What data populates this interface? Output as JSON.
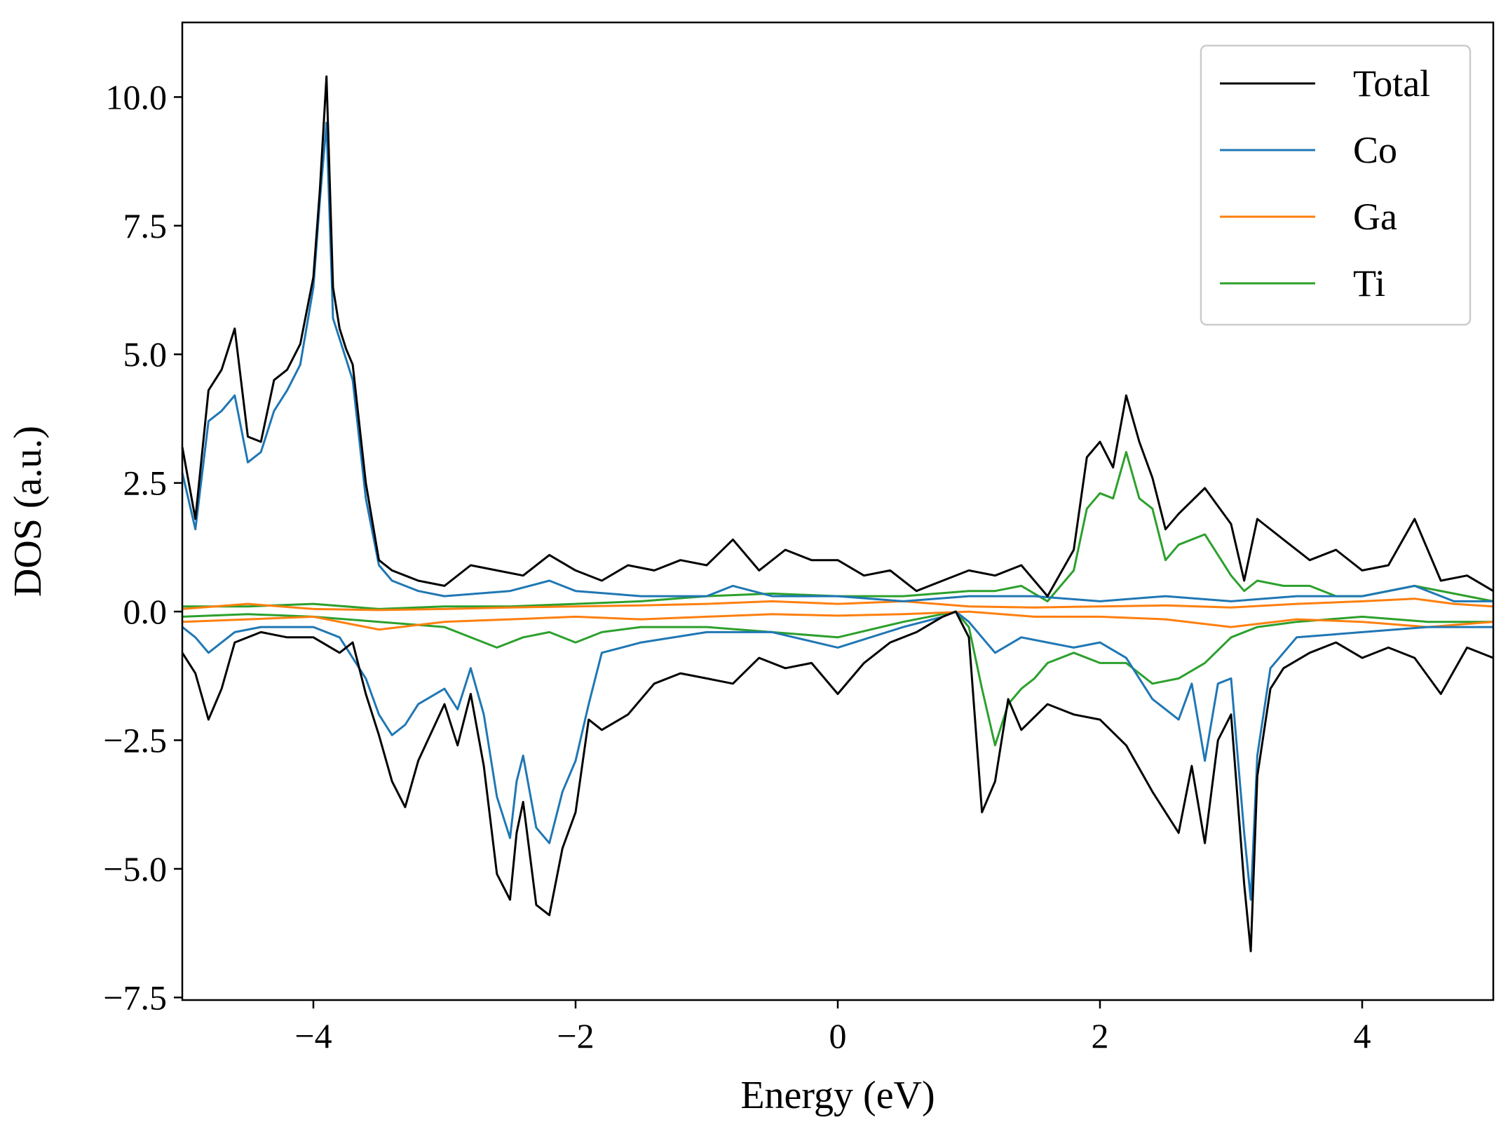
{
  "chart_data": {
    "type": "line",
    "title": "",
    "xlabel": "Energy (eV)",
    "ylabel": "DOS (a.u.)",
    "xlim": [
      -5,
      5
    ],
    "ylim": [
      -7.55,
      11.45
    ],
    "xticks": [
      -4,
      -2,
      0,
      2,
      4
    ],
    "xtick_labels": [
      "−4",
      "−2",
      "0",
      "2",
      "4"
    ],
    "yticks": [
      10.0,
      7.5,
      5.0,
      2.5,
      0.0,
      -2.5,
      -5.0,
      -7.5
    ],
    "ytick_labels": [
      "10.0",
      "7.5",
      "5.0",
      "2.5",
      "0.0",
      "−2.5",
      "−5.0",
      "−7.5"
    ],
    "grid": false,
    "legend_position": "top-right",
    "series": [
      {
        "name": "Total",
        "color": "#000000",
        "spin_up": {
          "x": [
            -5.0,
            -4.9,
            -4.8,
            -4.7,
            -4.6,
            -4.5,
            -4.4,
            -4.3,
            -4.2,
            -4.1,
            -4.0,
            -3.95,
            -3.9,
            -3.85,
            -3.8,
            -3.75,
            -3.7,
            -3.6,
            -3.5,
            -3.4,
            -3.3,
            -3.2,
            -3.0,
            -2.8,
            -2.6,
            -2.4,
            -2.2,
            -2.0,
            -1.8,
            -1.6,
            -1.4,
            -1.2,
            -1.0,
            -0.8,
            -0.6,
            -0.4,
            -0.2,
            0.0,
            0.2,
            0.4,
            0.6,
            0.8,
            1.0,
            1.2,
            1.4,
            1.6,
            1.8,
            1.9,
            2.0,
            2.1,
            2.2,
            2.3,
            2.4,
            2.5,
            2.6,
            2.8,
            3.0,
            3.1,
            3.2,
            3.4,
            3.6,
            3.8,
            4.0,
            4.2,
            4.4,
            4.6,
            4.8,
            5.0
          ],
          "y": [
            3.2,
            1.8,
            4.3,
            4.7,
            5.5,
            3.4,
            3.3,
            4.5,
            4.7,
            5.2,
            6.5,
            8.2,
            10.4,
            6.3,
            5.5,
            5.1,
            4.8,
            2.5,
            1.0,
            0.8,
            0.7,
            0.6,
            0.5,
            0.9,
            0.8,
            0.7,
            1.1,
            0.8,
            0.6,
            0.9,
            0.8,
            1.0,
            0.9,
            1.4,
            0.8,
            1.2,
            1.0,
            1.0,
            0.7,
            0.8,
            0.4,
            0.6,
            0.8,
            0.7,
            0.9,
            0.3,
            1.2,
            3.0,
            3.3,
            2.8,
            4.2,
            3.3,
            2.6,
            1.6,
            1.9,
            2.4,
            1.7,
            0.6,
            1.8,
            1.4,
            1.0,
            1.2,
            0.8,
            0.9,
            1.8,
            0.6,
            0.7,
            0.4
          ]
        },
        "spin_down": {
          "x": [
            -5.0,
            -4.9,
            -4.8,
            -4.7,
            -4.6,
            -4.4,
            -4.2,
            -4.0,
            -3.8,
            -3.7,
            -3.6,
            -3.5,
            -3.4,
            -3.3,
            -3.2,
            -3.0,
            -2.9,
            -2.8,
            -2.7,
            -2.6,
            -2.5,
            -2.45,
            -2.4,
            -2.3,
            -2.2,
            -2.1,
            -2.0,
            -1.9,
            -1.8,
            -1.6,
            -1.4,
            -1.2,
            -1.0,
            -0.8,
            -0.6,
            -0.4,
            -0.2,
            0.0,
            0.2,
            0.4,
            0.6,
            0.8,
            0.9,
            1.0,
            1.1,
            1.2,
            1.3,
            1.4,
            1.6,
            1.8,
            2.0,
            2.2,
            2.4,
            2.6,
            2.7,
            2.8,
            2.9,
            3.0,
            3.1,
            3.15,
            3.2,
            3.3,
            3.4,
            3.6,
            3.8,
            4.0,
            4.2,
            4.4,
            4.6,
            4.8,
            5.0
          ],
          "y": [
            -0.8,
            -1.2,
            -2.1,
            -1.5,
            -0.6,
            -0.4,
            -0.5,
            -0.5,
            -0.8,
            -0.6,
            -1.6,
            -2.4,
            -3.3,
            -3.8,
            -2.9,
            -1.8,
            -2.6,
            -1.6,
            -3.0,
            -5.1,
            -5.6,
            -4.3,
            -3.7,
            -5.7,
            -5.9,
            -4.6,
            -3.9,
            -2.1,
            -2.3,
            -2.0,
            -1.4,
            -1.2,
            -1.3,
            -1.4,
            -0.9,
            -1.1,
            -1.0,
            -1.6,
            -1.0,
            -0.6,
            -0.4,
            -0.1,
            0.0,
            -0.5,
            -3.9,
            -3.3,
            -1.7,
            -2.3,
            -1.8,
            -2.0,
            -2.1,
            -2.6,
            -3.5,
            -4.3,
            -3.0,
            -4.5,
            -2.5,
            -2.0,
            -5.3,
            -6.6,
            -3.2,
            -1.5,
            -1.1,
            -0.8,
            -0.6,
            -0.9,
            -0.7,
            -0.9,
            -1.6,
            -0.7,
            -0.9
          ]
        }
      },
      {
        "name": "Co",
        "color": "#1f77b4",
        "spin_up": {
          "x": [
            -5.0,
            -4.9,
            -4.8,
            -4.7,
            -4.6,
            -4.5,
            -4.4,
            -4.3,
            -4.2,
            -4.1,
            -4.0,
            -3.95,
            -3.9,
            -3.85,
            -3.8,
            -3.75,
            -3.7,
            -3.6,
            -3.5,
            -3.4,
            -3.3,
            -3.2,
            -3.0,
            -2.5,
            -2.2,
            -2.0,
            -1.5,
            -1.0,
            -0.8,
            -0.5,
            0.0,
            0.5,
            1.0,
            1.5,
            2.0,
            2.5,
            3.0,
            3.5,
            4.0,
            4.4,
            4.7,
            5.0
          ],
          "y": [
            2.7,
            1.6,
            3.7,
            3.9,
            4.2,
            2.9,
            3.1,
            3.9,
            4.3,
            4.8,
            6.3,
            8.0,
            9.5,
            5.7,
            5.3,
            4.9,
            4.5,
            2.2,
            0.9,
            0.6,
            0.5,
            0.4,
            0.3,
            0.4,
            0.6,
            0.4,
            0.3,
            0.3,
            0.5,
            0.3,
            0.3,
            0.2,
            0.3,
            0.3,
            0.2,
            0.3,
            0.2,
            0.3,
            0.3,
            0.5,
            0.2,
            0.2
          ]
        },
        "spin_down": {
          "x": [
            -5.0,
            -4.9,
            -4.8,
            -4.7,
            -4.6,
            -4.4,
            -4.2,
            -4.0,
            -3.8,
            -3.6,
            -3.5,
            -3.4,
            -3.3,
            -3.2,
            -3.0,
            -2.9,
            -2.8,
            -2.7,
            -2.6,
            -2.5,
            -2.45,
            -2.4,
            -2.3,
            -2.2,
            -2.1,
            -2.0,
            -1.9,
            -1.8,
            -1.5,
            -1.0,
            -0.5,
            0.0,
            0.5,
            0.8,
            0.9,
            1.0,
            1.2,
            1.4,
            1.6,
            1.8,
            2.0,
            2.2,
            2.4,
            2.6,
            2.7,
            2.8,
            2.9,
            3.0,
            3.1,
            3.15,
            3.2,
            3.3,
            3.5,
            4.0,
            4.5,
            5.0
          ],
          "y": [
            -0.3,
            -0.5,
            -0.8,
            -0.6,
            -0.4,
            -0.3,
            -0.3,
            -0.3,
            -0.5,
            -1.3,
            -2.0,
            -2.4,
            -2.2,
            -1.8,
            -1.5,
            -1.9,
            -1.1,
            -2.0,
            -3.6,
            -4.4,
            -3.3,
            -2.8,
            -4.2,
            -4.5,
            -3.5,
            -2.9,
            -1.8,
            -0.8,
            -0.6,
            -0.4,
            -0.4,
            -0.7,
            -0.3,
            -0.1,
            0.0,
            -0.2,
            -0.8,
            -0.5,
            -0.6,
            -0.7,
            -0.6,
            -0.9,
            -1.7,
            -2.1,
            -1.4,
            -2.9,
            -1.4,
            -1.3,
            -4.3,
            -5.6,
            -2.8,
            -1.1,
            -0.5,
            -0.4,
            -0.3,
            -0.3
          ]
        }
      },
      {
        "name": "Ga",
        "color": "#ff7f0e",
        "spin_up": {
          "x": [
            -5.0,
            -4.5,
            -4.0,
            -3.5,
            -3.0,
            -2.5,
            -2.0,
            -1.5,
            -1.0,
            -0.5,
            0.0,
            0.5,
            1.0,
            1.5,
            2.0,
            2.5,
            3.0,
            3.5,
            4.0,
            4.4,
            4.7,
            5.0
          ],
          "y": [
            0.05,
            0.15,
            0.05,
            0.03,
            0.05,
            0.08,
            0.1,
            0.12,
            0.15,
            0.2,
            0.15,
            0.2,
            0.1,
            0.08,
            0.1,
            0.12,
            0.08,
            0.15,
            0.2,
            0.25,
            0.15,
            0.1
          ]
        },
        "spin_down": {
          "x": [
            -5.0,
            -4.5,
            -4.0,
            -3.5,
            -3.0,
            -2.5,
            -2.0,
            -1.5,
            -1.0,
            -0.5,
            0.0,
            0.5,
            1.0,
            1.5,
            2.0,
            2.5,
            3.0,
            3.5,
            4.0,
            4.5,
            5.0
          ],
          "y": [
            -0.2,
            -0.15,
            -0.1,
            -0.35,
            -0.2,
            -0.15,
            -0.1,
            -0.15,
            -0.1,
            -0.05,
            -0.08,
            -0.05,
            0.0,
            -0.1,
            -0.1,
            -0.15,
            -0.3,
            -0.15,
            -0.2,
            -0.3,
            -0.2
          ]
        }
      },
      {
        "name": "Ti",
        "color": "#2ca02c",
        "spin_up": {
          "x": [
            -5.0,
            -4.5,
            -4.0,
            -3.5,
            -3.0,
            -2.5,
            -2.0,
            -1.5,
            -1.0,
            -0.5,
            0.0,
            0.5,
            1.0,
            1.2,
            1.4,
            1.6,
            1.8,
            1.9,
            2.0,
            2.1,
            2.2,
            2.3,
            2.4,
            2.5,
            2.6,
            2.8,
            3.0,
            3.1,
            3.2,
            3.4,
            3.6,
            3.8,
            4.0,
            4.4,
            5.0
          ],
          "y": [
            0.1,
            0.1,
            0.15,
            0.05,
            0.1,
            0.1,
            0.15,
            0.2,
            0.3,
            0.35,
            0.3,
            0.3,
            0.4,
            0.4,
            0.5,
            0.2,
            0.8,
            2.0,
            2.3,
            2.2,
            3.1,
            2.2,
            2.0,
            1.0,
            1.3,
            1.5,
            0.7,
            0.4,
            0.6,
            0.5,
            0.5,
            0.3,
            0.3,
            0.5,
            0.2
          ]
        },
        "spin_down": {
          "x": [
            -5.0,
            -4.5,
            -4.0,
            -3.5,
            -3.0,
            -2.6,
            -2.4,
            -2.2,
            -2.0,
            -1.8,
            -1.5,
            -1.0,
            -0.5,
            0.0,
            0.5,
            0.8,
            0.9,
            1.0,
            1.1,
            1.2,
            1.3,
            1.4,
            1.5,
            1.6,
            1.8,
            2.0,
            2.2,
            2.4,
            2.6,
            2.8,
            3.0,
            3.2,
            3.5,
            4.0,
            4.5,
            5.0
          ],
          "y": [
            -0.1,
            -0.05,
            -0.1,
            -0.2,
            -0.3,
            -0.7,
            -0.5,
            -0.4,
            -0.6,
            -0.4,
            -0.3,
            -0.3,
            -0.4,
            -0.5,
            -0.2,
            -0.05,
            0.0,
            -0.3,
            -1.5,
            -2.6,
            -1.8,
            -1.5,
            -1.3,
            -1.0,
            -0.8,
            -1.0,
            -1.0,
            -1.4,
            -1.3,
            -1.0,
            -0.5,
            -0.3,
            -0.2,
            -0.1,
            -0.2,
            -0.2
          ]
        }
      }
    ]
  }
}
